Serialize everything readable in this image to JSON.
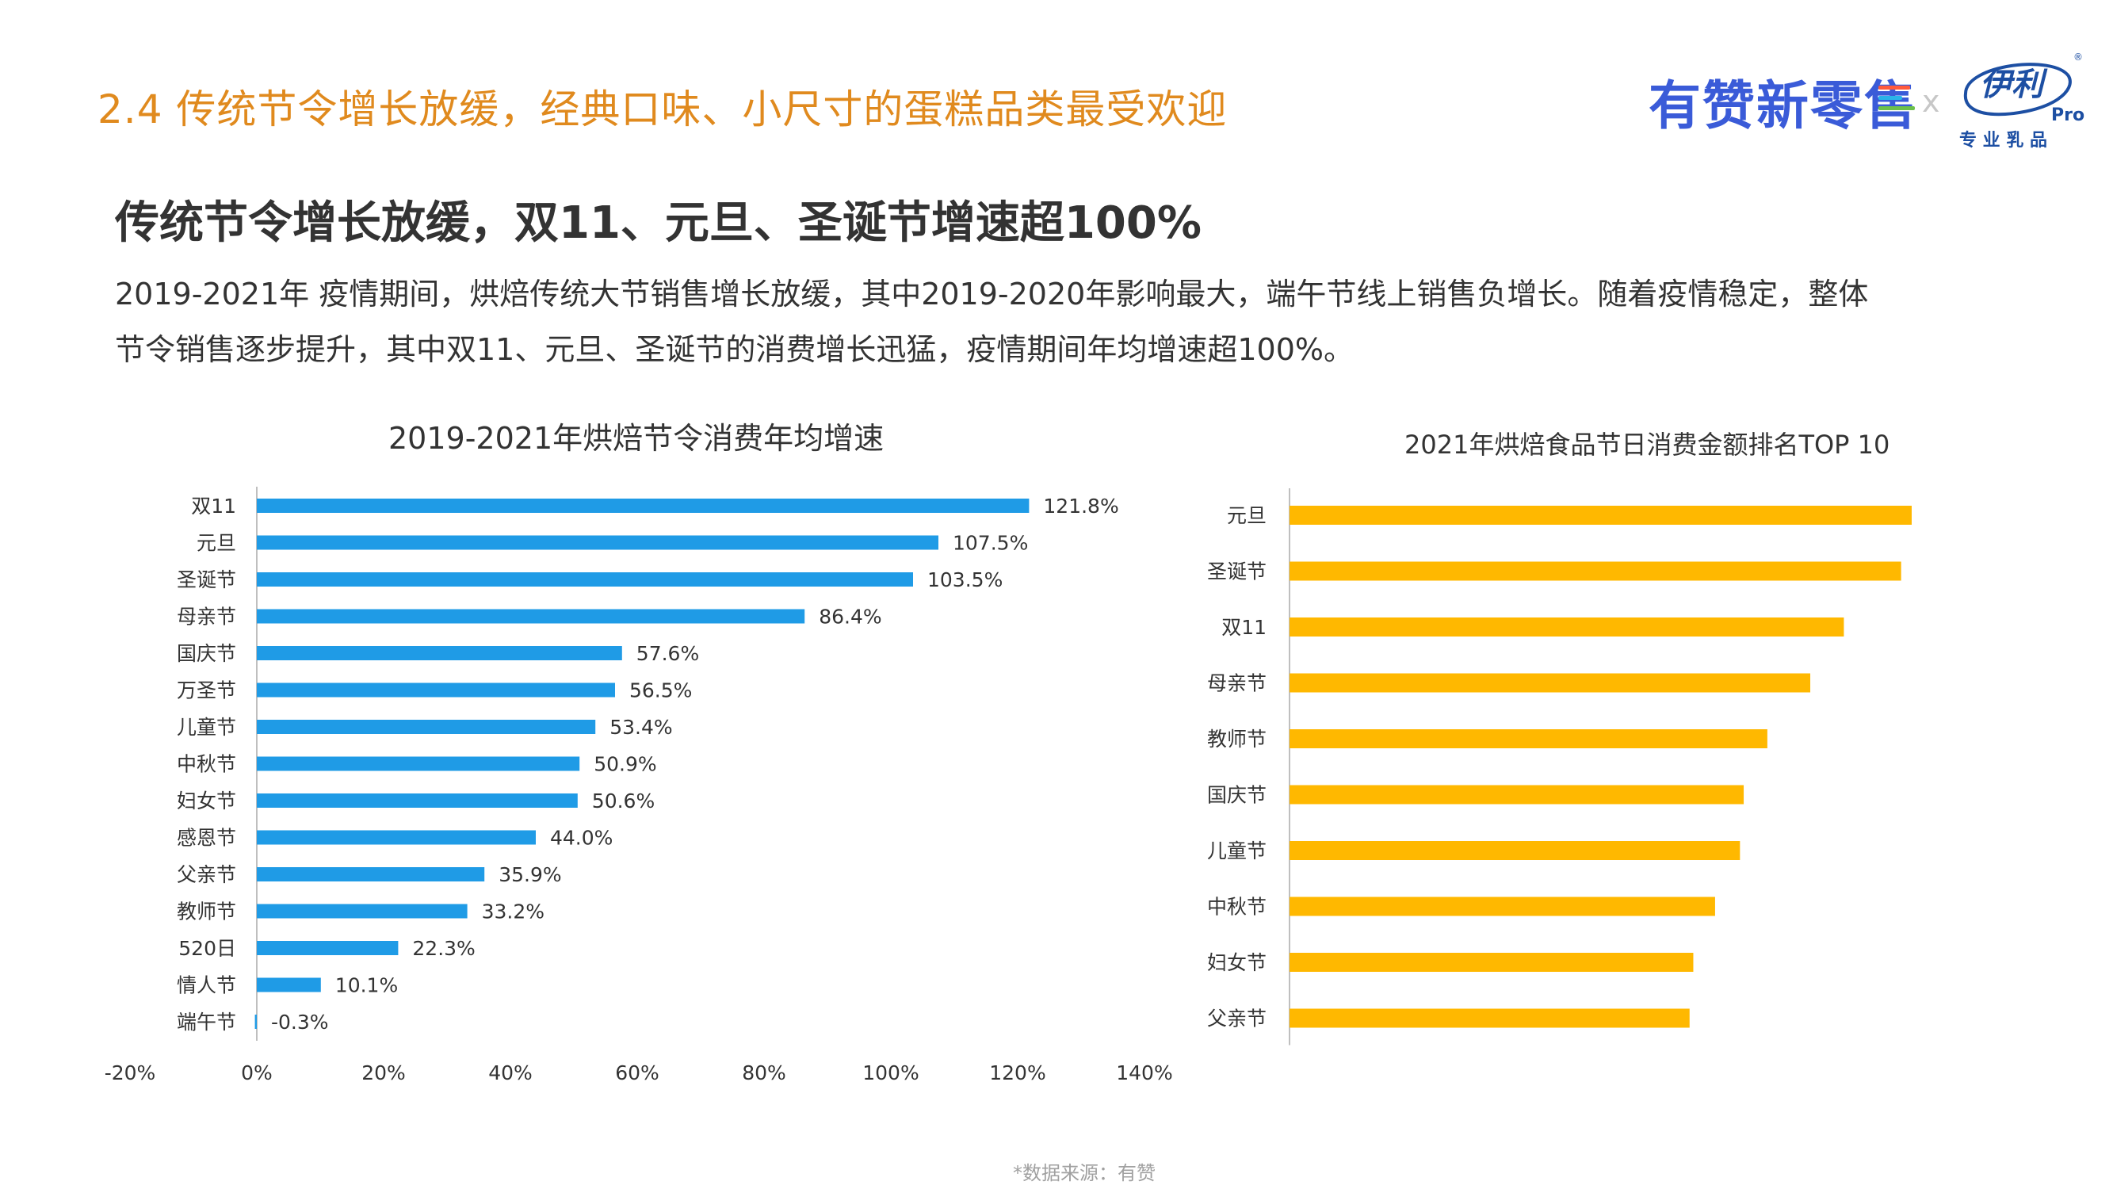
{
  "header": {
    "section_title": "2.4 传统节令增长放缓，经典口味、小尺寸的蛋糕品类最受欢迎",
    "brand_name": "有赞新零售",
    "separator": "x",
    "partner_logo_text": "伊利",
    "partner_logo_sub": "Pro",
    "partner_tagline": "专 业 乳 品",
    "partner_registered": "®"
  },
  "headline": "传统节令增长放缓，双11、元旦、圣诞节增速超100%",
  "paragraph": {
    "line1": "2019-2021年 疫情期间，烘焙传统大节销售增长放缓，其中2019-2020年影响最大，端午节线上销售负增长。随着疫情稳定，整体",
    "line2": "节令销售逐步提升，其中双11、元旦、圣诞节的消费增长迅猛，疫情期间年均增速超100%。"
  },
  "colors": {
    "title_orange": "#e08a1e",
    "bar_blue": "#1f9be6",
    "bar_yellow": "#ffb800",
    "brand_blue": "#3a5bd8",
    "logo_blue": "#1d4fa3"
  },
  "chart_data": [
    {
      "type": "bar",
      "orientation": "horizontal",
      "title": "2019-2021年烘焙节令消费年均增速",
      "categories": [
        "双11",
        "元旦",
        "圣诞节",
        "母亲节",
        "国庆节",
        "万圣节",
        "儿童节",
        "中秋节",
        "妇女节",
        "感恩节",
        "父亲节",
        "教师节",
        "520日",
        "情人节",
        "端午节"
      ],
      "values": [
        121.8,
        107.5,
        103.5,
        86.4,
        57.6,
        56.5,
        53.4,
        50.9,
        50.6,
        44.0,
        35.9,
        33.2,
        22.3,
        10.1,
        -0.3
      ],
      "value_labels": [
        "121.8%",
        "107.5%",
        "103.5%",
        "86.4%",
        "57.6%",
        "56.5%",
        "53.4%",
        "50.9%",
        "50.6%",
        "44.0%",
        "35.9%",
        "33.2%",
        "22.3%",
        "10.1%",
        "-0.3%"
      ],
      "xlim": [
        -20,
        140
      ],
      "xticks": [
        -20,
        0,
        20,
        40,
        60,
        80,
        100,
        120,
        140
      ],
      "xtick_labels": [
        "-20%",
        "0%",
        "20%",
        "40%",
        "60%",
        "80%",
        "100%",
        "120%",
        "140%"
      ],
      "unit": "%",
      "color": "#1f9be6",
      "grid": false,
      "legend": "none"
    },
    {
      "type": "bar",
      "orientation": "horizontal",
      "title": "2021年烘焙食品节日消费金额排名TOP 10",
      "categories": [
        "元旦",
        "圣诞节",
        "双11",
        "母亲节",
        "教师节",
        "国庆节",
        "儿童节",
        "中秋节",
        "妇女节",
        "父亲节"
      ],
      "values": [
        100,
        98.3,
        89.1,
        83.7,
        76.8,
        73.0,
        72.4,
        68.4,
        64.9,
        64.3
      ],
      "values_note": "relative values estimated from bar lengths; no axis or data labels shown",
      "color": "#ffb800",
      "grid": false,
      "legend": "none"
    }
  ],
  "footer": {
    "source": "*数据来源：有赞"
  }
}
